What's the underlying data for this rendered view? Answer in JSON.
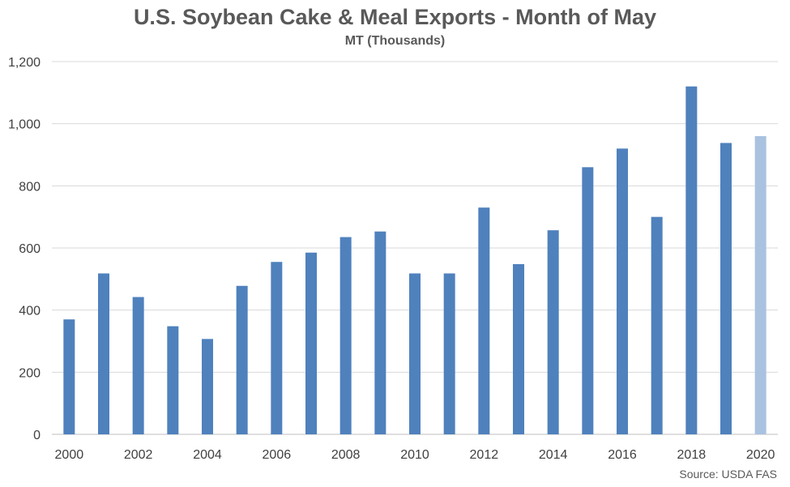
{
  "chart_data": {
    "type": "bar",
    "title": "U.S. Soybean Cake & Meal Exports - Month of May",
    "subtitle": "MT (Thousands)",
    "source": "Source: USDA FAS",
    "xlabel": "",
    "ylabel": "",
    "ylim": [
      0,
      1200
    ],
    "yticks": [
      0,
      200,
      400,
      600,
      800,
      1000,
      1200
    ],
    "ytick_labels": [
      "0",
      "200",
      "400",
      "600",
      "800",
      "1,000",
      "1,200"
    ],
    "grid": true,
    "legend": "none",
    "categories": [
      "2000",
      "2001",
      "2002",
      "2003",
      "2004",
      "2005",
      "2006",
      "2007",
      "2008",
      "2009",
      "2010",
      "2011",
      "2012",
      "2013",
      "2014",
      "2015",
      "2016",
      "2017",
      "2018",
      "2019",
      "2020"
    ],
    "xtick_labels": [
      "2000",
      "",
      "2002",
      "",
      "2004",
      "",
      "2006",
      "",
      "2008",
      "",
      "2010",
      "",
      "2012",
      "",
      "2014",
      "",
      "2016",
      "",
      "2018",
      "",
      "2020"
    ],
    "values": [
      370,
      518,
      442,
      348,
      307,
      478,
      555,
      585,
      635,
      653,
      518,
      518,
      730,
      548,
      657,
      860,
      920,
      700,
      1120,
      938,
      960
    ],
    "colors": {
      "bar": "#4f81bd",
      "bar_highlight": "#a9c2e0",
      "grid": "#d9d9d9",
      "axis": "#bfbfbf"
    },
    "highlight_index": 20
  }
}
